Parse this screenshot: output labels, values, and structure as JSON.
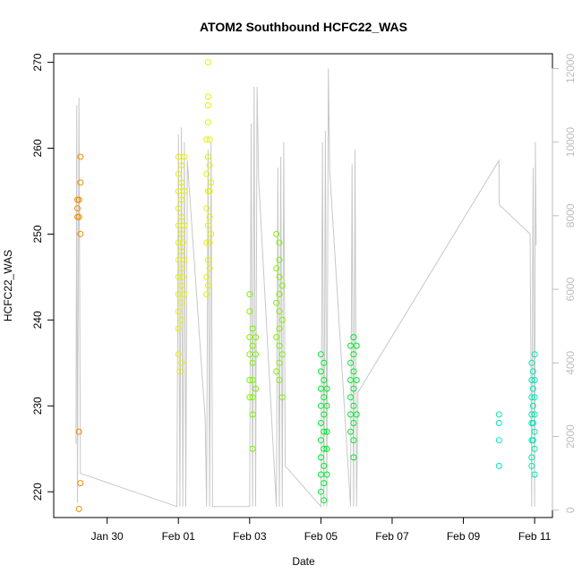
{
  "chart_data": {
    "type": "scatter",
    "title": "ATOM2 Southbound HCFC22_WAS",
    "xlabel": "Date",
    "ylabel": "HCFC22_WAS",
    "x_unit": "days",
    "xlim": [
      "2017-01-28T12:00",
      "2017-02-11T12:00"
    ],
    "ylim": [
      217,
      271
    ],
    "yticks": [
      220,
      230,
      240,
      250,
      260,
      270
    ],
    "xticks": [
      {
        "date": "2017-01-30T00:00",
        "label": "Jan 30"
      },
      {
        "date": "2017-02-01T00:00",
        "label": "Feb 01"
      },
      {
        "date": "2017-02-03T00:00",
        "label": "Feb 03"
      },
      {
        "date": "2017-02-05T00:00",
        "label": "Feb 05"
      },
      {
        "date": "2017-02-07T00:00",
        "label": "Feb 07"
      },
      {
        "date": "2017-02-09T00:00",
        "label": "Feb 09"
      },
      {
        "date": "2017-02-11T00:00",
        "label": "Feb 11"
      }
    ],
    "secondary_axis": {
      "side": "right",
      "ylim": [
        -200,
        12400
      ],
      "yticks": [
        0,
        2000,
        4000,
        6000,
        8000,
        10000,
        12000
      ],
      "color": "#bdbdbd",
      "description": "altitude trace (grey line)"
    },
    "series": [
      {
        "color": "#f28c00",
        "points": [
          [
            "2017-01-29T04:00",
            254
          ],
          [
            "2017-01-29T04:00",
            253
          ],
          [
            "2017-01-29T04:00",
            252
          ],
          [
            "2017-01-29T05:00",
            254
          ],
          [
            "2017-01-29T05:00",
            252
          ],
          [
            "2017-01-29T05:00",
            227
          ],
          [
            "2017-01-29T06:00",
            259
          ],
          [
            "2017-01-29T06:00",
            256
          ],
          [
            "2017-01-29T06:00",
            250
          ],
          [
            "2017-01-29T06:00",
            221
          ],
          [
            "2017-01-29T05:00",
            218
          ]
        ]
      },
      {
        "color": "#e6f000",
        "points": [
          [
            "2017-02-01T00:00",
            259
          ],
          [
            "2017-02-01T00:00",
            257
          ],
          [
            "2017-02-01T00:00",
            255
          ],
          [
            "2017-02-01T00:00",
            253
          ],
          [
            "2017-02-01T00:00",
            251
          ],
          [
            "2017-02-01T00:00",
            249
          ],
          [
            "2017-02-01T00:00",
            247
          ],
          [
            "2017-02-01T00:00",
            245
          ],
          [
            "2017-02-01T00:00",
            243
          ],
          [
            "2017-02-01T00:00",
            241
          ],
          [
            "2017-02-01T00:00",
            239
          ],
          [
            "2017-02-01T00:00",
            236
          ],
          [
            "2017-02-01T02:00",
            258
          ],
          [
            "2017-02-01T02:00",
            256
          ],
          [
            "2017-02-01T02:00",
            254
          ],
          [
            "2017-02-01T02:00",
            252
          ],
          [
            "2017-02-01T02:00",
            250
          ],
          [
            "2017-02-01T02:00",
            248
          ],
          [
            "2017-02-01T02:00",
            246
          ],
          [
            "2017-02-01T02:00",
            244
          ],
          [
            "2017-02-01T02:00",
            242
          ],
          [
            "2017-02-01T02:00",
            240
          ],
          [
            "2017-02-01T02:00",
            235
          ],
          [
            "2017-02-01T04:00",
            259
          ],
          [
            "2017-02-01T04:00",
            255
          ],
          [
            "2017-02-01T04:00",
            251
          ],
          [
            "2017-02-01T04:00",
            247
          ],
          [
            "2017-02-01T04:00",
            243
          ],
          [
            "2017-02-01T01:00",
            234
          ],
          [
            "2017-02-01T03:00",
            249
          ],
          [
            "2017-02-01T03:00",
            245
          ],
          [
            "2017-02-01T19:00",
            261
          ],
          [
            "2017-02-01T19:00",
            257
          ],
          [
            "2017-02-01T19:00",
            253
          ],
          [
            "2017-02-01T19:00",
            249
          ],
          [
            "2017-02-01T19:00",
            245
          ],
          [
            "2017-02-01T19:00",
            243
          ],
          [
            "2017-02-01T20:00",
            270
          ],
          [
            "2017-02-01T20:00",
            266
          ],
          [
            "2017-02-01T20:00",
            265
          ],
          [
            "2017-02-01T20:00",
            263
          ],
          [
            "2017-02-01T20:00",
            259
          ],
          [
            "2017-02-01T20:00",
            255
          ],
          [
            "2017-02-01T20:00",
            251
          ],
          [
            "2017-02-01T20:00",
            247
          ],
          [
            "2017-02-01T20:00",
            244
          ],
          [
            "2017-02-01T21:00",
            261
          ],
          [
            "2017-02-01T21:00",
            258
          ],
          [
            "2017-02-01T21:00",
            255
          ],
          [
            "2017-02-01T21:00",
            252
          ],
          [
            "2017-02-01T21:00",
            249
          ],
          [
            "2017-02-01T21:00",
            246
          ],
          [
            "2017-02-01T22:00",
            256
          ],
          [
            "2017-02-01T22:00",
            250
          ]
        ]
      },
      {
        "color": "#7ff000",
        "points": [
          [
            "2017-02-03T00:00",
            243
          ],
          [
            "2017-02-03T00:00",
            241
          ],
          [
            "2017-02-03T00:00",
            238
          ],
          [
            "2017-02-03T00:00",
            236
          ],
          [
            "2017-02-03T00:00",
            233
          ],
          [
            "2017-02-03T00:00",
            231
          ],
          [
            "2017-02-03T02:00",
            239
          ],
          [
            "2017-02-03T02:00",
            237
          ],
          [
            "2017-02-03T02:00",
            235
          ],
          [
            "2017-02-03T02:00",
            233
          ],
          [
            "2017-02-03T02:00",
            231
          ],
          [
            "2017-02-03T02:00",
            229
          ],
          [
            "2017-02-03T02:00",
            225
          ],
          [
            "2017-02-03T04:00",
            238
          ],
          [
            "2017-02-03T04:00",
            236
          ],
          [
            "2017-02-03T04:00",
            232
          ],
          [
            "2017-02-03T18:00",
            250
          ],
          [
            "2017-02-03T18:00",
            246
          ],
          [
            "2017-02-03T18:00",
            242
          ],
          [
            "2017-02-03T18:00",
            238
          ],
          [
            "2017-02-03T18:00",
            234
          ],
          [
            "2017-02-03T20:00",
            249
          ],
          [
            "2017-02-03T20:00",
            247
          ],
          [
            "2017-02-03T20:00",
            245
          ],
          [
            "2017-02-03T20:00",
            243
          ],
          [
            "2017-02-03T20:00",
            241
          ],
          [
            "2017-02-03T20:00",
            239
          ],
          [
            "2017-02-03T20:00",
            237
          ],
          [
            "2017-02-03T20:00",
            235
          ],
          [
            "2017-02-03T20:00",
            233
          ],
          [
            "2017-02-03T22:00",
            244
          ],
          [
            "2017-02-03T22:00",
            240
          ],
          [
            "2017-02-03T22:00",
            236
          ],
          [
            "2017-02-03T22:00",
            231
          ]
        ]
      },
      {
        "color": "#00e82a",
        "points": [
          [
            "2017-02-05T00:00",
            236
          ],
          [
            "2017-02-05T00:00",
            234
          ],
          [
            "2017-02-05T00:00",
            232
          ],
          [
            "2017-02-05T00:00",
            230
          ],
          [
            "2017-02-05T00:00",
            228
          ],
          [
            "2017-02-05T00:00",
            226
          ],
          [
            "2017-02-05T00:00",
            224
          ],
          [
            "2017-02-05T00:00",
            222
          ],
          [
            "2017-02-05T00:00",
            220
          ],
          [
            "2017-02-05T02:00",
            235
          ],
          [
            "2017-02-05T02:00",
            233
          ],
          [
            "2017-02-05T02:00",
            231
          ],
          [
            "2017-02-05T02:00",
            229
          ],
          [
            "2017-02-05T02:00",
            227
          ],
          [
            "2017-02-05T02:00",
            225
          ],
          [
            "2017-02-05T02:00",
            223
          ],
          [
            "2017-02-05T02:00",
            221
          ],
          [
            "2017-02-05T02:00",
            219
          ],
          [
            "2017-02-05T04:00",
            232
          ],
          [
            "2017-02-05T04:00",
            230
          ],
          [
            "2017-02-05T04:00",
            227
          ],
          [
            "2017-02-05T04:00",
            225
          ],
          [
            "2017-02-05T04:00",
            222
          ],
          [
            "2017-02-05T20:00",
            237
          ],
          [
            "2017-02-05T20:00",
            235
          ],
          [
            "2017-02-05T20:00",
            233
          ],
          [
            "2017-02-05T20:00",
            231
          ],
          [
            "2017-02-05T20:00",
            229
          ],
          [
            "2017-02-05T20:00",
            227
          ],
          [
            "2017-02-05T22:00",
            238
          ],
          [
            "2017-02-05T22:00",
            236
          ],
          [
            "2017-02-05T22:00",
            234
          ],
          [
            "2017-02-05T22:00",
            232
          ],
          [
            "2017-02-05T22:00",
            230
          ],
          [
            "2017-02-05T22:00",
            228
          ],
          [
            "2017-02-05T22:00",
            226
          ],
          [
            "2017-02-05T22:00",
            224
          ],
          [
            "2017-02-06T00:00",
            237
          ],
          [
            "2017-02-06T00:00",
            233
          ],
          [
            "2017-02-06T00:00",
            229
          ]
        ]
      },
      {
        "color": "#00e8b4",
        "points": [
          [
            "2017-02-10T00:00",
            229
          ],
          [
            "2017-02-10T00:00",
            228
          ],
          [
            "2017-02-10T00:00",
            226
          ],
          [
            "2017-02-10T00:00",
            223
          ],
          [
            "2017-02-10T22:00",
            235
          ],
          [
            "2017-02-10T22:00",
            233
          ],
          [
            "2017-02-10T22:00",
            231
          ],
          [
            "2017-02-10T22:00",
            229
          ],
          [
            "2017-02-10T22:00",
            228
          ],
          [
            "2017-02-10T22:00",
            226
          ],
          [
            "2017-02-10T22:00",
            224
          ],
          [
            "2017-02-10T22:00",
            223
          ],
          [
            "2017-02-10T23:00",
            234
          ],
          [
            "2017-02-10T23:00",
            232
          ],
          [
            "2017-02-10T23:00",
            230
          ],
          [
            "2017-02-10T23:00",
            228
          ],
          [
            "2017-02-10T23:00",
            226
          ],
          [
            "2017-02-11T00:00",
            236
          ],
          [
            "2017-02-11T00:00",
            233
          ],
          [
            "2017-02-11T00:00",
            231
          ],
          [
            "2017-02-11T00:00",
            229
          ],
          [
            "2017-02-11T00:00",
            227
          ],
          [
            "2017-02-11T00:00",
            225
          ],
          [
            "2017-02-11T00:00",
            222
          ]
        ]
      }
    ],
    "altitude_trace": {
      "color": "#c8c8c8",
      "points": [
        [
          "2017-01-29T03:00",
          1800
        ],
        [
          "2017-01-29T03:30",
          11000
        ],
        [
          "2017-01-29T04:00",
          200
        ],
        [
          "2017-01-29T05:00",
          11200
        ],
        [
          "2017-01-29T06:00",
          1000
        ],
        [
          "2017-01-31T23:00",
          100
        ],
        [
          "2017-02-01T00:00",
          10200
        ],
        [
          "2017-02-01T01:00",
          100
        ],
        [
          "2017-02-01T02:00",
          10400
        ],
        [
          "2017-02-01T03:00",
          100
        ],
        [
          "2017-02-01T04:00",
          10000
        ],
        [
          "2017-02-01T05:00",
          100
        ],
        [
          "2017-02-01T06:00",
          9500
        ],
        [
          "2017-02-01T18:00",
          2500
        ],
        [
          "2017-02-01T19:00",
          100
        ],
        [
          "2017-02-01T20:00",
          9800
        ],
        [
          "2017-02-01T21:00",
          100
        ],
        [
          "2017-02-01T22:00",
          10000
        ],
        [
          "2017-02-01T23:00",
          100
        ],
        [
          "2017-02-03T00:00",
          100
        ],
        [
          "2017-02-03T01:00",
          10500
        ],
        [
          "2017-02-03T02:00",
          100
        ],
        [
          "2017-02-03T03:00",
          11500
        ],
        [
          "2017-02-03T04:00",
          100
        ],
        [
          "2017-02-03T05:00",
          11500
        ],
        [
          "2017-02-03T06:00",
          9000
        ],
        [
          "2017-02-03T18:00",
          100
        ],
        [
          "2017-02-03T19:00",
          9300
        ],
        [
          "2017-02-03T20:00",
          100
        ],
        [
          "2017-02-03T21:00",
          9600
        ],
        [
          "2017-02-03T22:00",
          100
        ],
        [
          "2017-02-03T23:00",
          10000
        ],
        [
          "2017-02-04T00:00",
          1200
        ],
        [
          "2017-02-05T00:00",
          100
        ],
        [
          "2017-02-05T01:00",
          10000
        ],
        [
          "2017-02-05T02:00",
          100
        ],
        [
          "2017-02-05T03:00",
          10300
        ],
        [
          "2017-02-05T04:00",
          100
        ],
        [
          "2017-02-05T05:00",
          12000
        ],
        [
          "2017-02-05T06:00",
          9200
        ],
        [
          "2017-02-05T20:00",
          100
        ],
        [
          "2017-02-05T21:00",
          9400
        ],
        [
          "2017-02-05T22:00",
          100
        ],
        [
          "2017-02-05T23:00",
          9800
        ],
        [
          "2017-02-06T00:00",
          100
        ],
        [
          "2017-02-06T01:00",
          3200
        ],
        [
          "2017-02-10T00:00",
          9500
        ],
        [
          "2017-02-10T00:05",
          8300
        ],
        [
          "2017-02-10T21:00",
          7500
        ],
        [
          "2017-02-10T22:00",
          100
        ],
        [
          "2017-02-10T23:00",
          9300
        ],
        [
          "2017-02-11T00:00",
          100
        ],
        [
          "2017-02-11T00:30",
          10000
        ],
        [
          "2017-02-11T01:00",
          7200
        ]
      ]
    }
  }
}
